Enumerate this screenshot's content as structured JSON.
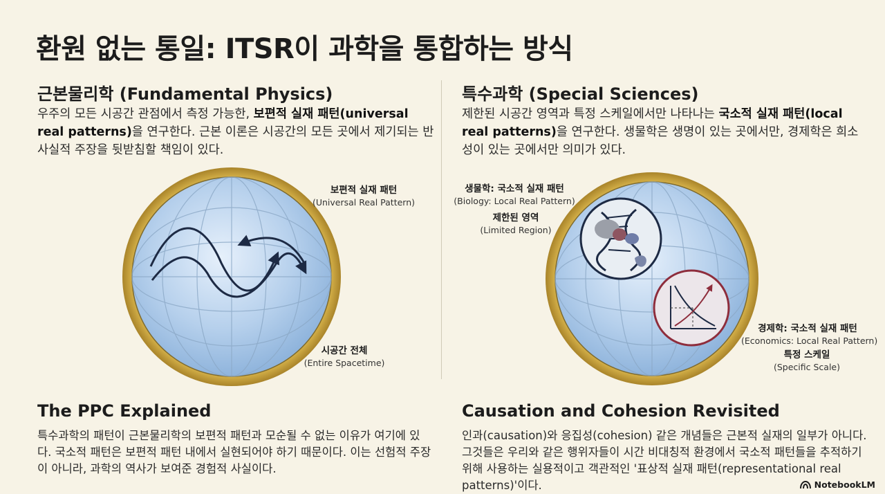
{
  "title": "환원 없는 통일: ITSR이 과학을 통합하는 방식",
  "left": {
    "heading": "근본물리학 (Fundamental Physics)",
    "para": {
      "p1": "우주의 모든 시공간 관점에서 측정 가능한, ",
      "bold": "보편적 실재 패턴(universal real patterns)",
      "p2": "을 연구한다. 근본 이론은 시공간의 모든 곳에서 제기되는 반사실적 주장을 뒷받침할 책임이 있다."
    },
    "label_top": {
      "kr": "보편적 실재 패턴",
      "en": "(Universal Real Pattern)"
    },
    "label_bottom": {
      "kr": "시공간 전체",
      "en": "(Entire Spacetime)"
    }
  },
  "right": {
    "heading": "특수과학 (Special Sciences)",
    "para": {
      "p1": "제한된 시공간 영역과 특정 스케일에서만 나타나는 ",
      "bold": "국소적 실재 패턴(local real patterns)",
      "p2": "을 연구한다. 생물학은 생명이 있는 곳에서만, 경제학은 희소성이 있는 곳에서만 의미가 있다."
    },
    "label_bio": {
      "kr": "생물학: 국소적 실재 패턴",
      "en": "(Biology: Local Real Pattern)"
    },
    "label_region": {
      "kr": "제한된 영역",
      "en": "(Limited Region)"
    },
    "label_econ": {
      "kr": "경제학: 국소적 실재 패턴",
      "en": "(Economics: Local Real Pattern)"
    },
    "label_scale": {
      "kr": "특정 스케일",
      "en": "(Specific Scale)"
    }
  },
  "ppc": {
    "heading": "The PPC Explained",
    "para": "특수과학의 패턴이 근본물리학의 보편적 패턴과 모순될 수 없는 이유가 여기에 있다. 국소적 패턴은 보편적 패턴 내에서 실현되어야 하기 때문이다. 이는 선험적 주장이 아니라, 과학의 역사가 보여준 경험적 사실이다."
  },
  "causation": {
    "heading": "Causation and Cohesion Revisited",
    "para": "인과(causation)와 응집성(cohesion) 같은 개념들은 근본적 실재의 일부가 아니다. 그것들은 우리와 같은 행위자들이 시간 비대칭적 환경에서 국소적 패턴들을 추적하기 위해 사용하는 실용적이고 객관적인 '표상적 실재 패턴(representational real patterns)'이다."
  },
  "brand": "NotebookLM",
  "colors": {
    "background": "#f7f3e6",
    "sphere_blue": "#a9c8e8",
    "gold_rim": "#c9a43a",
    "econ_red": "#8e2d3c"
  }
}
